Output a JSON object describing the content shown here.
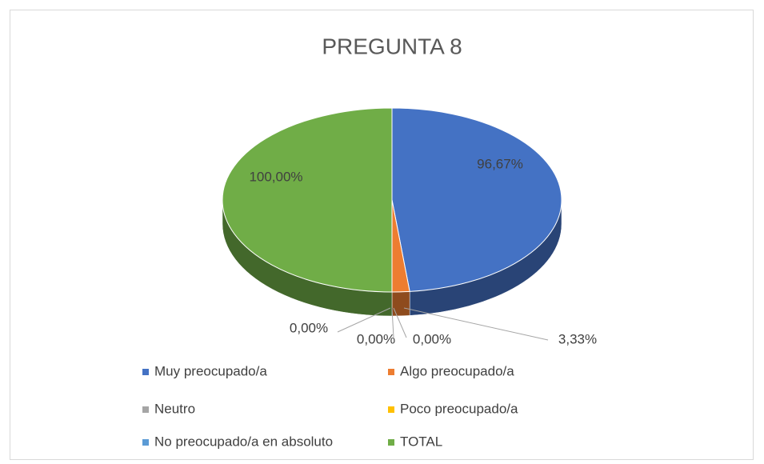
{
  "chart_data": {
    "type": "pie",
    "title": "PREGUNTA 8",
    "categories": [
      "Muy preocupado/a",
      "Algo preocupado/a",
      "Neutro",
      "Poco preocupado/a",
      "No preocupado/a en absoluto",
      "TOTAL"
    ],
    "values": [
      96.67,
      3.33,
      0,
      0,
      0,
      100
    ],
    "value_labels": [
      "96,67%",
      "3,33%",
      "0,00%",
      "0,00%",
      "0,00%",
      "100,00%"
    ],
    "colors": [
      "#4472c4",
      "#ed7d31",
      "#a5a5a5",
      "#ffc000",
      "#5b9bd5",
      "#70ad47"
    ],
    "legend": "bottom"
  }
}
